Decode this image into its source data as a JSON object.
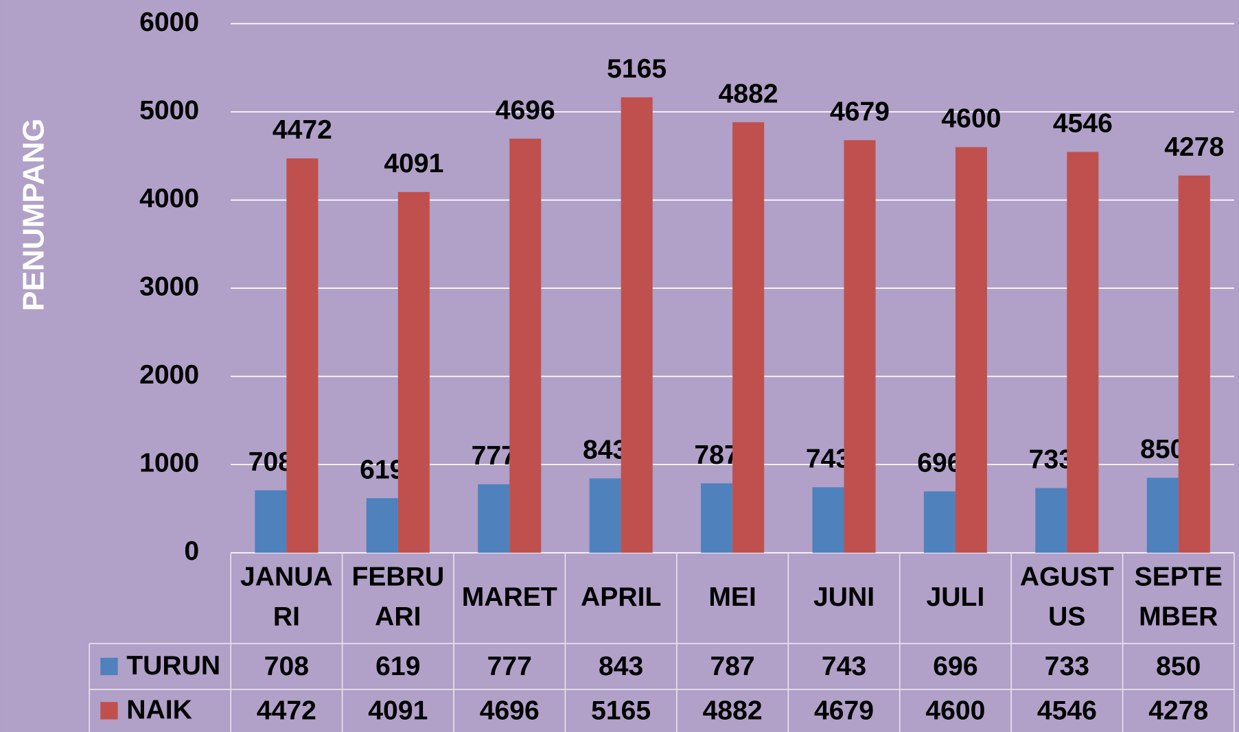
{
  "chart_data": {
    "type": "bar",
    "y_label": "PENUMPANG",
    "categories": [
      "JANUARI",
      "FEBRUARI",
      "MARET",
      "APRIL",
      "MEI",
      "JUNI",
      "JULI",
      "AGUSTUS",
      "SEPTEMBER"
    ],
    "series": [
      {
        "name": "TURUN",
        "color": "#4f81bd",
        "values": [
          708,
          619,
          777,
          843,
          787,
          743,
          696,
          733,
          850
        ]
      },
      {
        "name": "NAIK",
        "color": "#c0504d",
        "values": [
          4472,
          4091,
          4696,
          5165,
          4882,
          4679,
          4600,
          4546,
          4278
        ]
      }
    ],
    "ylim": [
      0,
      6000
    ],
    "yticks": [
      0,
      1000,
      2000,
      3000,
      4000,
      5000,
      6000
    ],
    "grid": true
  }
}
